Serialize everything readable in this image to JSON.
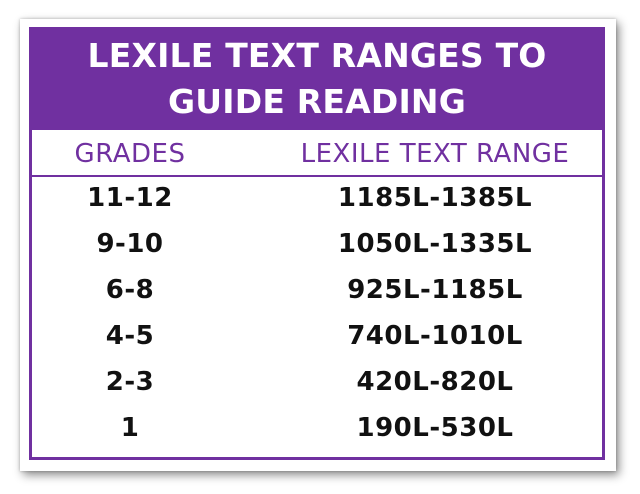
{
  "title": {
    "line1": "LEXILE TEXT RANGES TO",
    "line2": "GUIDE READING"
  },
  "table": {
    "headers": {
      "grades": "GRADES",
      "range": "LEXILE TEXT RANGE"
    },
    "rows": [
      {
        "grade": "11-12",
        "range": "1185L-1385L"
      },
      {
        "grade": "9-10",
        "range": "1050L-1335L"
      },
      {
        "grade": "6-8",
        "range": "925L-1185L"
      },
      {
        "grade": "4-5",
        "range": "740L-1010L"
      },
      {
        "grade": "2-3",
        "range": "420L-820L"
      },
      {
        "grade": "1",
        "range": "190L-530L"
      }
    ]
  },
  "colors": {
    "accent": "#7030a0",
    "text": "#111111"
  }
}
